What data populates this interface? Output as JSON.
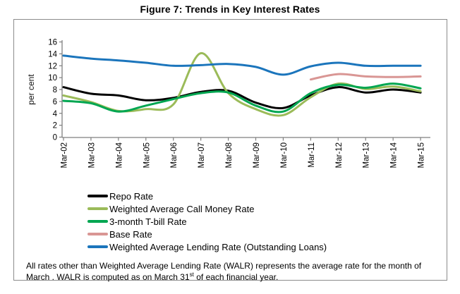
{
  "title": "Figure 7: Trends in Key Interest Rates",
  "chart_data": {
    "type": "line",
    "categories": [
      "Mar-02",
      "Mar-03",
      "Mar-04",
      "Mar-05",
      "Mar-06",
      "Mar-07",
      "Mar-08",
      "Mar-09",
      "Mar-10",
      "Mar-11",
      "Mar-12",
      "Mar-13",
      "Mar-14",
      "Mar-15"
    ],
    "ylabel": "per cent",
    "ylim": [
      0,
      16
    ],
    "yticks": [
      0,
      2,
      4,
      6,
      8,
      10,
      12,
      14,
      16
    ],
    "grid": false,
    "legend_position": "bottom-left",
    "axis_color": "#7f7f7f",
    "series": [
      {
        "name": "Repo Rate",
        "color": "#000000",
        "values": [
          8.4,
          7.3,
          7.0,
          6.2,
          6.6,
          7.6,
          7.8,
          5.8,
          4.9,
          7.0,
          8.4,
          7.5,
          8.0,
          7.5
        ]
      },
      {
        "name": "Weighted Average Call Money Rate",
        "color": "#9BBB59",
        "values": [
          7.0,
          5.9,
          4.4,
          4.7,
          5.5,
          14.1,
          7.4,
          4.7,
          3.7,
          6.7,
          9.0,
          8.1,
          8.5,
          7.7
        ]
      },
      {
        "name": "3-month T-bill Rate",
        "color": "#00A651",
        "values": [
          6.1,
          5.7,
          4.3,
          5.3,
          6.4,
          7.4,
          7.5,
          5.3,
          4.3,
          7.4,
          8.8,
          8.3,
          9.0,
          8.2
        ]
      },
      {
        "name": "Base Rate",
        "color": "#D99694",
        "values": [
          null,
          null,
          null,
          null,
          null,
          null,
          null,
          null,
          null,
          9.7,
          10.6,
          10.2,
          10.1,
          10.2
        ]
      },
      {
        "name": "Weighted Average Lending Rate (Outstanding Loans)",
        "color": "#1B75BC",
        "values": [
          13.7,
          13.2,
          12.9,
          12.5,
          12.0,
          12.1,
          12.3,
          11.8,
          10.5,
          11.9,
          12.5,
          12.0,
          12.0,
          12.0
        ]
      }
    ]
  },
  "footnote": {
    "line1": "All rates other than Weighted Average Lending Rate (WALR) represents the average rate for",
    "line2_pre": "the month of March . WALR is computed as on March 31",
    "line2_sup": "st",
    "line2_post": " of each financial year."
  }
}
